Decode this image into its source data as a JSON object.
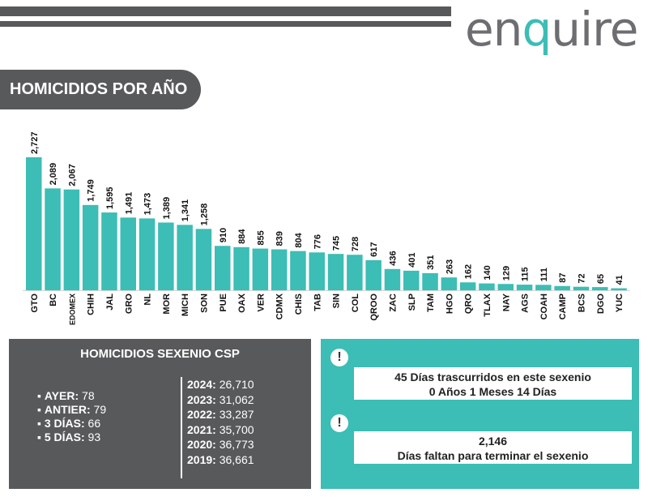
{
  "header": {
    "logo_prefix": "en",
    "logo_q": "q",
    "logo_suffix": "uire"
  },
  "title": "HOMICIDIOS POR AÑO",
  "chart_data": {
    "type": "bar",
    "categories": [
      "GTO",
      "BC",
      "EDOMEX",
      "CHIH",
      "JAL",
      "GRO",
      "NL",
      "MOR",
      "MICH",
      "SON",
      "PUE",
      "OAX",
      "VER",
      "CDMX",
      "CHIS",
      "TAB",
      "SIN",
      "COL",
      "QROO",
      "ZAC",
      "SLP",
      "TAM",
      "HGO",
      "QRO",
      "TLAX",
      "NAY",
      "AGS",
      "COAH",
      "CAMP",
      "BCS",
      "DGO",
      "YUC"
    ],
    "values": [
      2727,
      2089,
      2067,
      1749,
      1595,
      1491,
      1473,
      1389,
      1341,
      1258,
      910,
      884,
      855,
      839,
      804,
      776,
      745,
      728,
      617,
      436,
      401,
      351,
      263,
      162,
      140,
      129,
      115,
      111,
      87,
      72,
      65,
      41
    ],
    "value_labels": [
      "2,727",
      "2,089",
      "2,067",
      "1,749",
      "1,595",
      "1,491",
      "1,473",
      "1,389",
      "1,341",
      "1,258",
      "910",
      "884",
      "855",
      "839",
      "804",
      "776",
      "745",
      "728",
      "617",
      "436",
      "401",
      "351",
      "263",
      "162",
      "140",
      "129",
      "115",
      "111",
      "87",
      "72",
      "65",
      "41"
    ],
    "bar_color": "#3cbdb5",
    "ylim": [
      0,
      2727
    ]
  },
  "sexenio": {
    "title": "HOMICIDIOS SEXENIO CSP",
    "days": [
      {
        "label": "AYER:",
        "value": "78"
      },
      {
        "label": "ANTIER:",
        "value": "79"
      },
      {
        "label": "3 DÍAS:",
        "value": "66"
      },
      {
        "label": "5 DÍAS:",
        "value": "93"
      }
    ],
    "years": [
      {
        "label": "2024:",
        "value": "26,710"
      },
      {
        "label": "2023:",
        "value": "31,062"
      },
      {
        "label": "2022:",
        "value": "33,287"
      },
      {
        "label": "2021:",
        "value": "35,700"
      },
      {
        "label": "2020:",
        "value": "36,773"
      },
      {
        "label": "2019:",
        "value": "36,661"
      }
    ]
  },
  "info": {
    "bang": "!",
    "line1": "45 Días trascurridos en este sexenio",
    "line2": "0 Años 1 Meses 14 Días",
    "line3": "2,146",
    "line4": "Días faltan para terminar el sexenio"
  },
  "colors": {
    "accent": "#3cbdb5",
    "dark": "#58595b"
  }
}
